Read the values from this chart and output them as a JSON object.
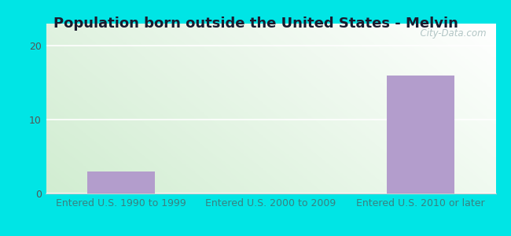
{
  "title": "Population born outside the United States - Melvin",
  "categories": [
    "Entered U.S. 1990 to 1999",
    "Entered U.S. 2000 to 2009",
    "Entered U.S. 2010 or later"
  ],
  "values": [
    3,
    0,
    16
  ],
  "bar_color": "#b39dcc",
  "ylim": [
    0,
    23
  ],
  "yticks": [
    0,
    10,
    20
  ],
  "background_outer": "#00e5e5",
  "grad_top_left": "#d8eedd",
  "grad_top_right": "#eefaf5",
  "grad_bottom_left": "#c8e8cc",
  "grad_bottom_right": "#f0faf5",
  "title_fontsize": 13,
  "tick_label_fontsize": 9,
  "xtick_color": "#3a8080",
  "ytick_color": "#555555",
  "watermark_text": "  City-Data.com",
  "watermark_color": "#aabfbf"
}
